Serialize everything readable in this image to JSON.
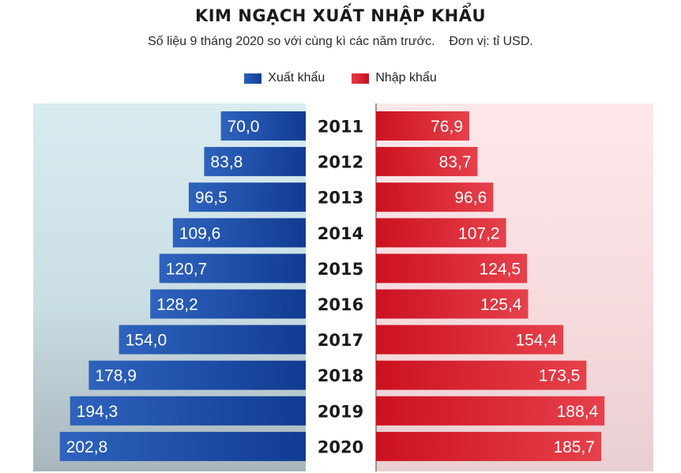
{
  "title": "KIM NGẠCH XUẤT NHẬP KHẨU",
  "subtitle": "Số liệu 9 tháng 2020 so với cùng kì các năm trước.    Đơn vị: tỉ USD.",
  "legend": {
    "export_label": "Xuất khẩu",
    "import_label": "Nhập khẩu"
  },
  "colors": {
    "export": "#1a4ea6",
    "import": "#d81e2b",
    "export_panel": "#d5e9ee",
    "import_panel": "#fbe3e5"
  },
  "chart_data": {
    "type": "bar",
    "orientation": "horizontal-butterfly",
    "categories": [
      "2011",
      "2012",
      "2013",
      "2014",
      "2015",
      "2016",
      "2017",
      "2018",
      "2019",
      "2020"
    ],
    "series": [
      {
        "name": "Xuất khẩu",
        "values": [
          70.0,
          83.8,
          96.5,
          109.6,
          120.7,
          128.2,
          154.0,
          178.9,
          194.3,
          202.8
        ],
        "labels": [
          "70,0",
          "83,8",
          "96,5",
          "109,6",
          "120,7",
          "128,2",
          "154,0",
          "178,9",
          "194,3",
          "202,8"
        ]
      },
      {
        "name": "Nhập khẩu",
        "values": [
          76.9,
          83.7,
          96.6,
          107.2,
          124.5,
          125.4,
          154.4,
          173.5,
          188.4,
          185.7
        ],
        "labels": [
          "76,9",
          "83,7",
          "96,6",
          "107,2",
          "124,5",
          "125,4",
          "154,4",
          "173,5",
          "188,4",
          "185,7"
        ]
      }
    ],
    "unit": "tỉ USD",
    "legend_position": "top-center",
    "grid": false
  }
}
